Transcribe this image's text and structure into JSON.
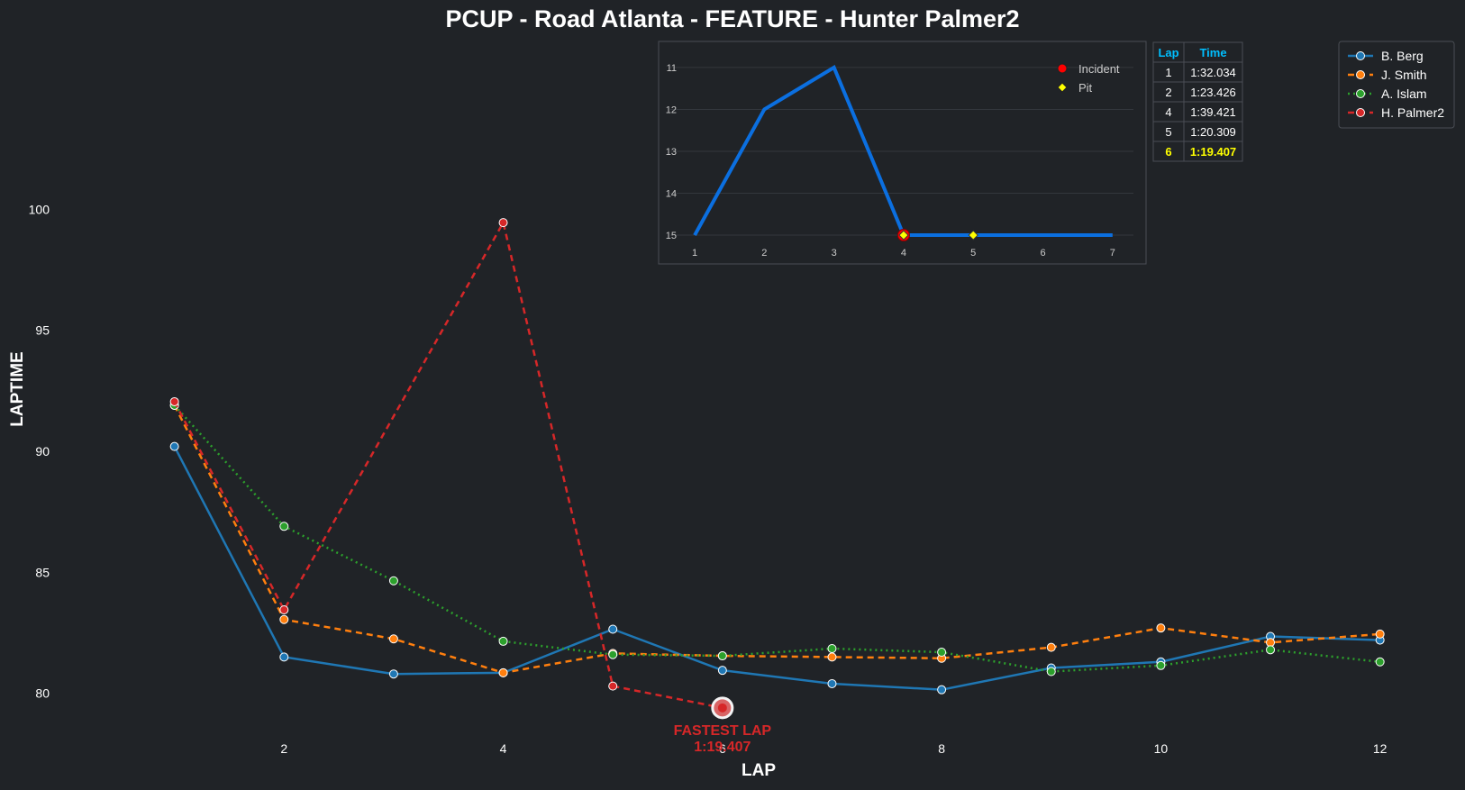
{
  "chart_data": [
    {
      "type": "line",
      "title": "PCUP - Road Atlanta - FEATURE - Hunter Palmer2",
      "xlabel": "LAP",
      "ylabel": "LAPTIME",
      "xlim": [
        0.0,
        12.2
      ],
      "ylim": [
        78.5,
        105.0
      ],
      "xticks": [
        2,
        4,
        6,
        8,
        10,
        12
      ],
      "yticks": [
        80,
        85,
        90,
        95,
        100
      ],
      "grid": false,
      "legend_position": "top-right",
      "x": [
        1,
        2,
        3,
        4,
        5,
        6,
        7,
        8,
        9,
        10,
        11,
        12
      ],
      "series": [
        {
          "name": "B. Berg",
          "color": "#1f77b4",
          "dash": "solid",
          "values": [
            90.2,
            81.5,
            80.8,
            80.85,
            82.65,
            80.95,
            80.4,
            80.15,
            81.05,
            81.3,
            82.35,
            82.2
          ]
        },
        {
          "name": "J. Smith",
          "color": "#ff7f0e",
          "dash": "dashed",
          "values": [
            91.9,
            83.05,
            82.25,
            80.85,
            81.65,
            81.55,
            81.5,
            81.45,
            81.9,
            82.7,
            82.1,
            82.45
          ]
        },
        {
          "name": "A. Islam",
          "color": "#2ca02c",
          "dash": "dotted",
          "values": [
            91.9,
            86.9,
            84.65,
            82.15,
            81.6,
            81.55,
            81.85,
            81.7,
            80.9,
            81.15,
            81.8,
            81.3
          ]
        },
        {
          "name": "H. Palmer2",
          "color": "#d62728",
          "dash": "dashed",
          "values": [
            92.05,
            83.45,
            null,
            99.45,
            80.3,
            79.4,
            null,
            null,
            null,
            null,
            null,
            null
          ]
        }
      ],
      "highlight": {
        "x": 6,
        "y": 79.4,
        "label_line1": "FASTEST LAP",
        "label_line2": "1:19.407",
        "color": "#d62728"
      }
    },
    {
      "type": "line",
      "series_color": "#0b6fe0",
      "xlim": [
        0.65,
        7.3
      ],
      "ylim": [
        15.3,
        10.55
      ],
      "xticks": [
        1,
        2,
        3,
        4,
        5,
        6,
        7
      ],
      "yticks": [
        11,
        12,
        13,
        14,
        15
      ],
      "grid": true,
      "x": [
        1,
        2,
        3,
        4,
        5,
        6,
        7
      ],
      "values": [
        15,
        12,
        11,
        15,
        15,
        15,
        15
      ],
      "incident_laps": [
        4
      ],
      "pit_laps": [
        4,
        5
      ],
      "legend": [
        {
          "label": "Incident",
          "color": "#ff0000",
          "marker": "circle"
        },
        {
          "label": "Pit",
          "color": "#ffff00",
          "marker": "diamond"
        }
      ],
      "legend_position": "top-right"
    },
    {
      "type": "table",
      "columns": [
        "Lap",
        "Time"
      ],
      "header_color": "#00bfff",
      "best_color": "#ffff00",
      "rows": [
        [
          "1",
          "1:32.034"
        ],
        [
          "2",
          "1:23.426"
        ],
        [
          "4",
          "1:39.421"
        ],
        [
          "5",
          "1:20.309"
        ],
        [
          "6",
          "1:19.407"
        ]
      ],
      "best_row_index": 4
    }
  ]
}
